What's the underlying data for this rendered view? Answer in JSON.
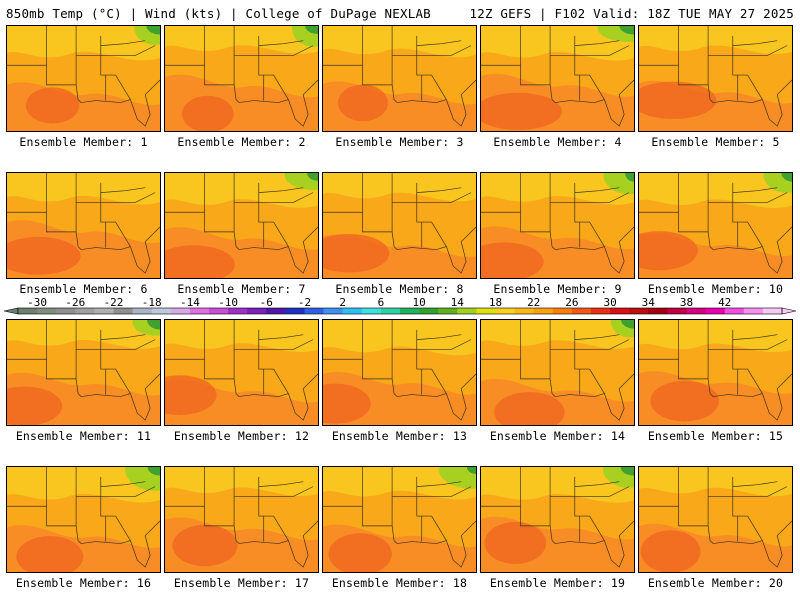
{
  "header": {
    "title": "850mb Temp (°C) | Wind (kts) | College of DuPage NEXLAB",
    "run_info": "12Z GEFS | F102 Valid: 18Z TUE MAY 27 2025"
  },
  "panels": [
    {
      "label": "Ensemble Member: 1"
    },
    {
      "label": "Ensemble Member: 2"
    },
    {
      "label": "Ensemble Member: 3"
    },
    {
      "label": "Ensemble Member: 4"
    },
    {
      "label": "Ensemble Member: 5"
    },
    {
      "label": "Ensemble Member: 6"
    },
    {
      "label": "Ensemble Member: 7"
    },
    {
      "label": "Ensemble Member: 8"
    },
    {
      "label": "Ensemble Member: 9"
    },
    {
      "label": "Ensemble Member: 10"
    },
    {
      "label": "Ensemble Member: 11"
    },
    {
      "label": "Ensemble Member: 12"
    },
    {
      "label": "Ensemble Member: 13"
    },
    {
      "label": "Ensemble Member: 14"
    },
    {
      "label": "Ensemble Member: 15"
    },
    {
      "label": "Ensemble Member: 16"
    },
    {
      "label": "Ensemble Member: 17"
    },
    {
      "label": "Ensemble Member: 18"
    },
    {
      "label": "Ensemble Member: 19"
    },
    {
      "label": "Ensemble Member: 20"
    }
  ],
  "colorbar": {
    "tick_labels": [
      "-30",
      "-26",
      "-22",
      "-18",
      "-14",
      "-10",
      "-6",
      "-2",
      "2",
      "6",
      "10",
      "14",
      "18",
      "22",
      "26",
      "30",
      "34",
      "38",
      "42"
    ],
    "colors": [
      "#6f7f6f",
      "#7f8f7f",
      "#909090",
      "#a0a0a0",
      "#b0b0b0",
      "#8f8f8f",
      "#a8b4c8",
      "#c0c8e0",
      "#d8a8e8",
      "#e070e0",
      "#c850d8",
      "#a030c8",
      "#7820b8",
      "#5018a8",
      "#2030c0",
      "#3060e0",
      "#4090f0",
      "#30c0f0",
      "#40e0e0",
      "#30d0a0",
      "#20b060",
      "#30a030",
      "#60b020",
      "#a0d020",
      "#e0e010",
      "#f8d020",
      "#f8b818",
      "#f8a010",
      "#f88010",
      "#f05818",
      "#e83018",
      "#d81018",
      "#b81010",
      "#a00010",
      "#c00040",
      "#d80080",
      "#e800b0",
      "#f050e0",
      "#f890f0",
      "#f8c8f8"
    ]
  }
}
